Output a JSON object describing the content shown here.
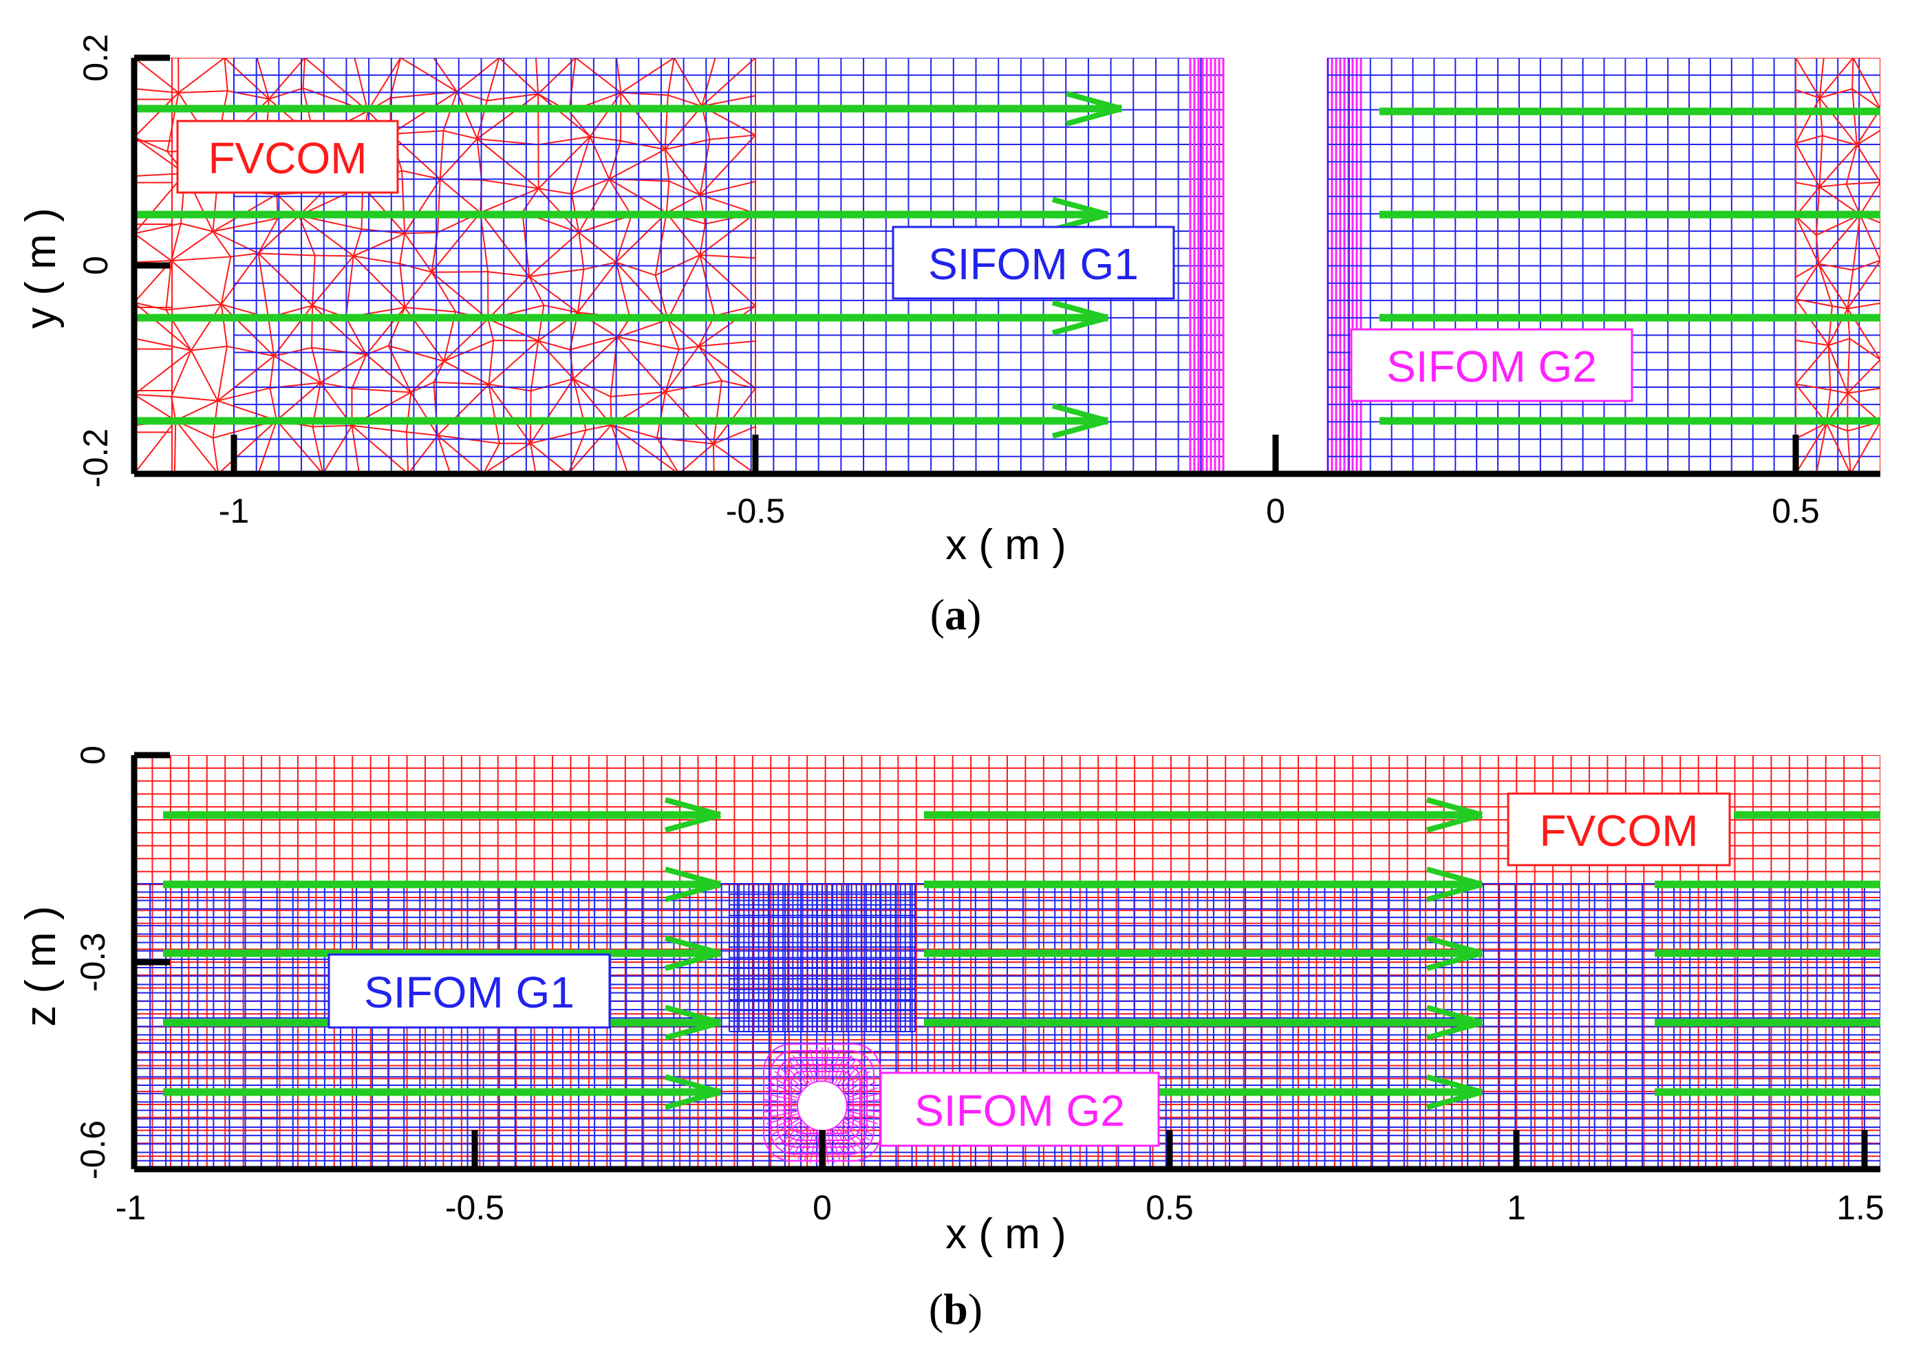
{
  "figure": {
    "panel_a": {
      "caption_letter": "a",
      "x_axis_title": "x ( m )",
      "y_axis_title": "y ( m )",
      "x_ticks": [
        "-1",
        "-0.5",
        "0",
        "0.5"
      ],
      "y_ticks": [
        "0.2",
        "0",
        "-0.2"
      ],
      "labels": {
        "fvcom": "FVCOM",
        "g1": "SIFOM G1",
        "g2": "SIFOM G2"
      }
    },
    "panel_b": {
      "caption_letter": "b",
      "x_axis_title": "x ( m )",
      "y_axis_title": "z ( m )",
      "x_ticks": [
        "-1",
        "-0.5",
        "0",
        "0.5",
        "1",
        "1.5"
      ],
      "y_ticks": [
        "0",
        "-0.3",
        "-0.6"
      ],
      "labels": {
        "fvcom": "FVCOM",
        "g1": "SIFOM G1",
        "g2": "SIFOM G2"
      }
    },
    "colors": {
      "fvcom": "#ff1a1a",
      "g1": "#2222ee",
      "g2": "#ff22ff",
      "flow": "#22cc22",
      "axis": "#000000"
    }
  }
}
